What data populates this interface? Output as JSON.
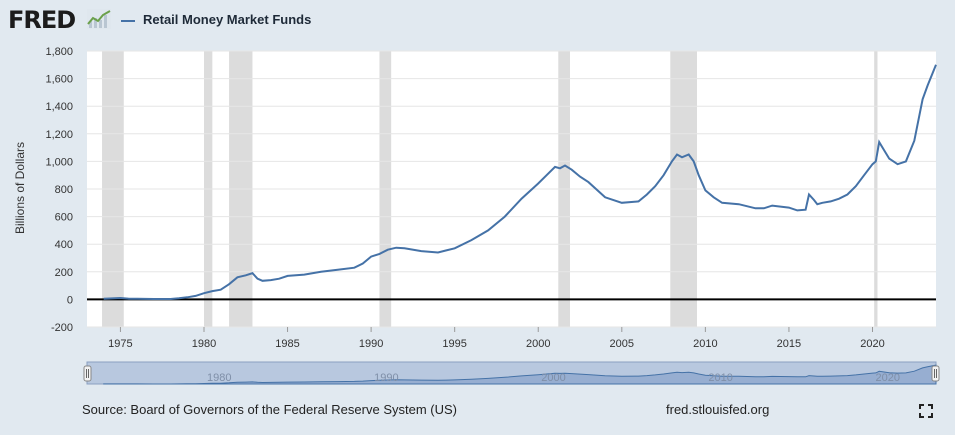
{
  "header": {
    "logo_text": "FRED",
    "series_title": "Retail Money Market Funds",
    "series_color": "#4572a7"
  },
  "footer": {
    "source": "Source: Board of Governors of the Federal Reserve System (US)",
    "url": "fred.stlouisfed.org",
    "fullscreen_icon": "fullscreen-icon"
  },
  "chart_data": {
    "type": "line",
    "title": "Retail Money Market Funds",
    "xlabel": "",
    "ylabel": "Billions of Dollars",
    "xlim": [
      1973.0,
      2023.8
    ],
    "ylim": [
      -200,
      1800
    ],
    "yticks": [
      -200,
      0,
      200,
      400,
      600,
      800,
      1000,
      1200,
      1400,
      1600,
      1800
    ],
    "ytick_labels": [
      "-200",
      "0",
      "200",
      "400",
      "600",
      "800",
      "1,000",
      "1,200",
      "1,400",
      "1,600",
      "1,800"
    ],
    "xticks": [
      1975,
      1980,
      1985,
      1990,
      1995,
      2000,
      2005,
      2010,
      2015,
      2020
    ],
    "xtick_labels": [
      "1975",
      "1980",
      "1985",
      "1990",
      "1995",
      "2000",
      "2005",
      "2010",
      "2015",
      "2020"
    ],
    "grid": true,
    "zero_line": true,
    "recessions": [
      [
        1973.9,
        1975.2
      ],
      [
        1980.0,
        1980.5
      ],
      [
        1981.5,
        1982.9
      ],
      [
        1990.5,
        1991.2
      ],
      [
        2001.2,
        2001.9
      ],
      [
        2007.9,
        2009.5
      ],
      [
        2020.1,
        2020.3
      ]
    ],
    "navigator": {
      "tick_labels": [
        "1980",
        "1990",
        "2000",
        "2010",
        "2020"
      ],
      "tick_years": [
        1980,
        1990,
        2000,
        2010,
        2020
      ]
    },
    "series": [
      {
        "name": "Retail Money Market Funds",
        "color": "#4572a7",
        "x": [
          1974.0,
          1975.0,
          1975.5,
          1976.0,
          1977.0,
          1978.0,
          1978.5,
          1979.0,
          1979.5,
          1980.0,
          1980.5,
          1981.0,
          1981.5,
          1982.0,
          1982.5,
          1982.9,
          1983.2,
          1983.5,
          1984.0,
          1984.5,
          1985.0,
          1986.0,
          1987.0,
          1988.0,
          1989.0,
          1989.5,
          1990.0,
          1990.5,
          1991.0,
          1991.5,
          1992.0,
          1993.0,
          1994.0,
          1994.5,
          1995.0,
          1996.0,
          1997.0,
          1998.0,
          1999.0,
          2000.0,
          2000.5,
          2001.0,
          2001.3,
          2001.6,
          2002.0,
          2002.5,
          2003.0,
          2004.0,
          2005.0,
          2006.0,
          2006.5,
          2007.0,
          2007.5,
          2008.0,
          2008.3,
          2008.6,
          2009.0,
          2009.3,
          2009.6,
          2010.0,
          2010.5,
          2011.0,
          2012.0,
          2013.0,
          2013.5,
          2014.0,
          2015.0,
          2015.5,
          2016.0,
          2016.2,
          2016.5,
          2016.7,
          2017.0,
          2017.5,
          2018.0,
          2018.5,
          2019.0,
          2019.5,
          2020.0,
          2020.2,
          2020.4,
          2020.7,
          2021.0,
          2021.5,
          2022.0,
          2022.5,
          2023.0,
          2023.3,
          2023.8
        ],
        "values": [
          5,
          10,
          5,
          5,
          3,
          3,
          8,
          15,
          25,
          45,
          60,
          70,
          110,
          160,
          175,
          190,
          150,
          135,
          140,
          150,
          170,
          180,
          200,
          215,
          230,
          260,
          310,
          330,
          360,
          375,
          370,
          350,
          340,
          355,
          370,
          430,
          500,
          600,
          730,
          840,
          900,
          960,
          950,
          970,
          940,
          890,
          850,
          740,
          700,
          710,
          760,
          820,
          900,
          1000,
          1050,
          1030,
          1050,
          1000,
          900,
          790,
          740,
          700,
          690,
          660,
          660,
          680,
          665,
          645,
          650,
          760,
          720,
          690,
          700,
          710,
          730,
          760,
          820,
          900,
          980,
          1000,
          1140,
          1080,
          1020,
          980,
          1000,
          1150,
          1450,
          1550,
          1700
        ]
      }
    ]
  }
}
